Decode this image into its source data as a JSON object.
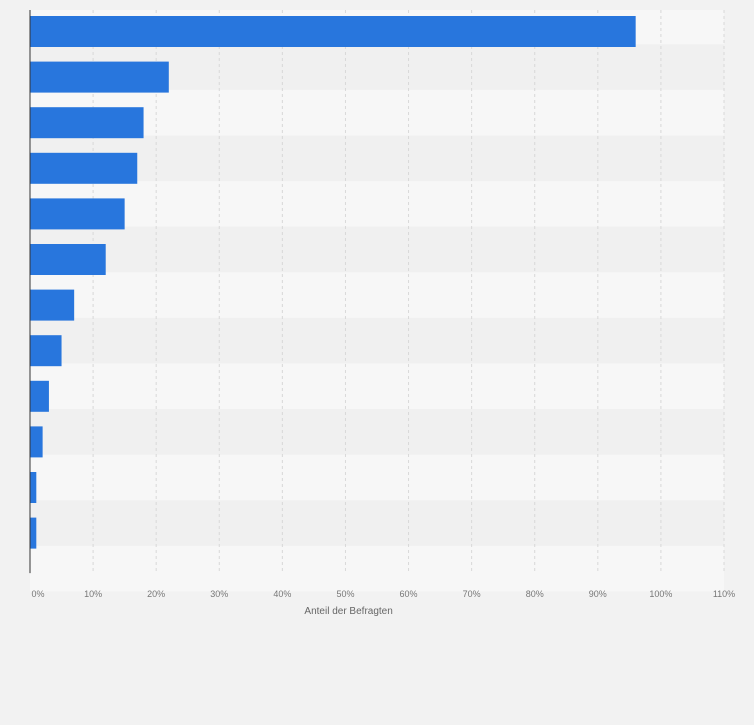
{
  "chart_data": {
    "type": "bar",
    "orientation": "horizontal",
    "categories": [
      "",
      "",
      "",
      "",
      "",
      "",
      "",
      "",
      "",
      "",
      "",
      ""
    ],
    "values": [
      96,
      22,
      18,
      17,
      15,
      12,
      7,
      5,
      3,
      2,
      1,
      1
    ],
    "xlabel": "Anteil der Befragten",
    "ylabel": "",
    "xlim": [
      0,
      110
    ],
    "xticks": [
      "0%",
      "10%",
      "20%",
      "30%",
      "40%",
      "50%",
      "60%",
      "70%",
      "80%",
      "90%",
      "100%",
      "110%"
    ],
    "grid": true,
    "bar_color": "#2876dd",
    "band_colors": [
      "#f7f7f7",
      "#f0f0f0"
    ],
    "gridline_color": "#d8d8d8"
  }
}
